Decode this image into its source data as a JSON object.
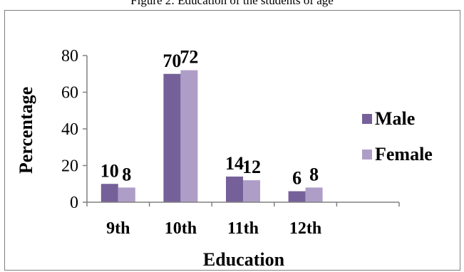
{
  "page": {
    "caption_fragment": "Figure 2: Education of the students of age"
  },
  "chart_data": {
    "type": "bar",
    "title": "",
    "xlabel": "Education",
    "ylabel": "Percentage",
    "categories": [
      "9th",
      "10th",
      "11th",
      "12th"
    ],
    "series": [
      {
        "name": "Male",
        "values": [
          10,
          70,
          14,
          6
        ],
        "color": "#76609a"
      },
      {
        "name": "Female",
        "values": [
          8,
          72,
          12,
          8
        ],
        "color": "#ae9ec7"
      }
    ],
    "ylim": [
      0,
      80
    ],
    "yticks": [
      0,
      20,
      40,
      60,
      80
    ],
    "grid": false,
    "legend": "right",
    "data_labels": true
  }
}
